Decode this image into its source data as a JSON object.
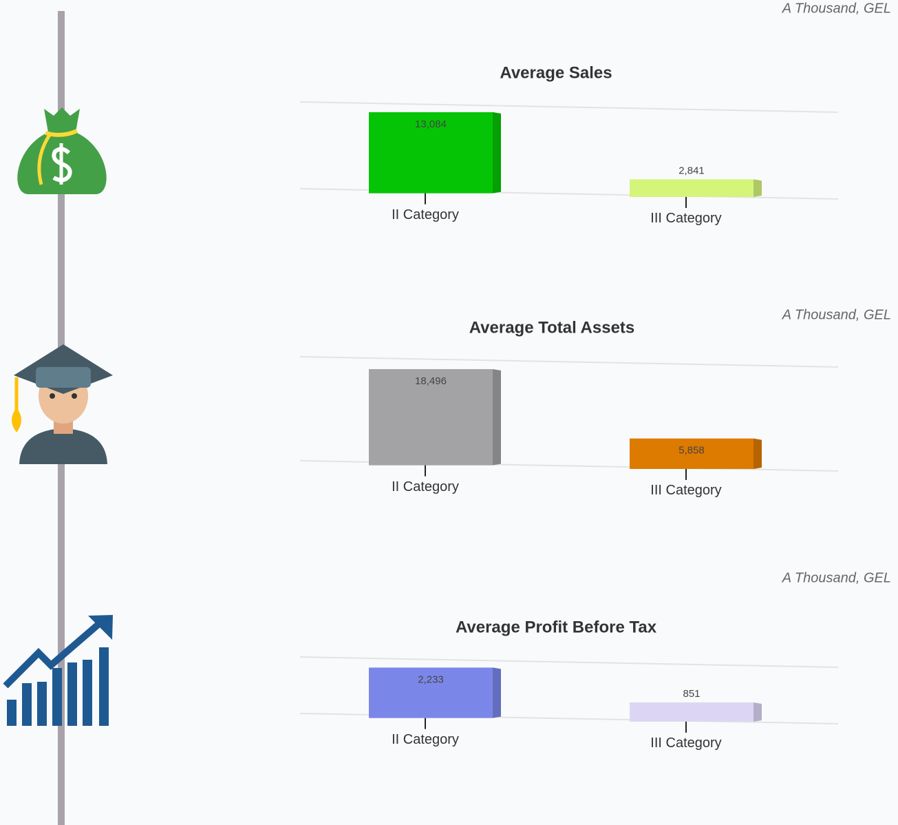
{
  "chart_data": [
    {
      "type": "bar",
      "title": "Average Sales",
      "unit_note": "A Thousand, GEL",
      "categories": [
        "II Category",
        "III Category"
      ],
      "values": [
        13084,
        2841
      ],
      "value_labels": [
        "13,084",
        "2,841"
      ],
      "colors": [
        "#05c405",
        "#d4f57a"
      ],
      "ylim": [
        0,
        14000
      ]
    },
    {
      "type": "bar",
      "title": "Average Total Assets",
      "unit_note": "A Thousand, GEL",
      "categories": [
        "II Category",
        "III Category"
      ],
      "values": [
        18496,
        5858
      ],
      "value_labels": [
        "18,496",
        "5,858"
      ],
      "colors": [
        "#a3a3a5",
        "#dd7a00"
      ],
      "ylim": [
        0,
        20000
      ]
    },
    {
      "type": "bar",
      "title": "Average Profit Before Tax",
      "unit_note": "A Thousand, GEL",
      "categories": [
        "II Category",
        "III Category"
      ],
      "values": [
        2233,
        851
      ],
      "value_labels": [
        "2,233",
        "851"
      ],
      "colors": [
        "#7b87e8",
        "#dcd6f4"
      ],
      "ylim": [
        0,
        2500
      ]
    }
  ]
}
